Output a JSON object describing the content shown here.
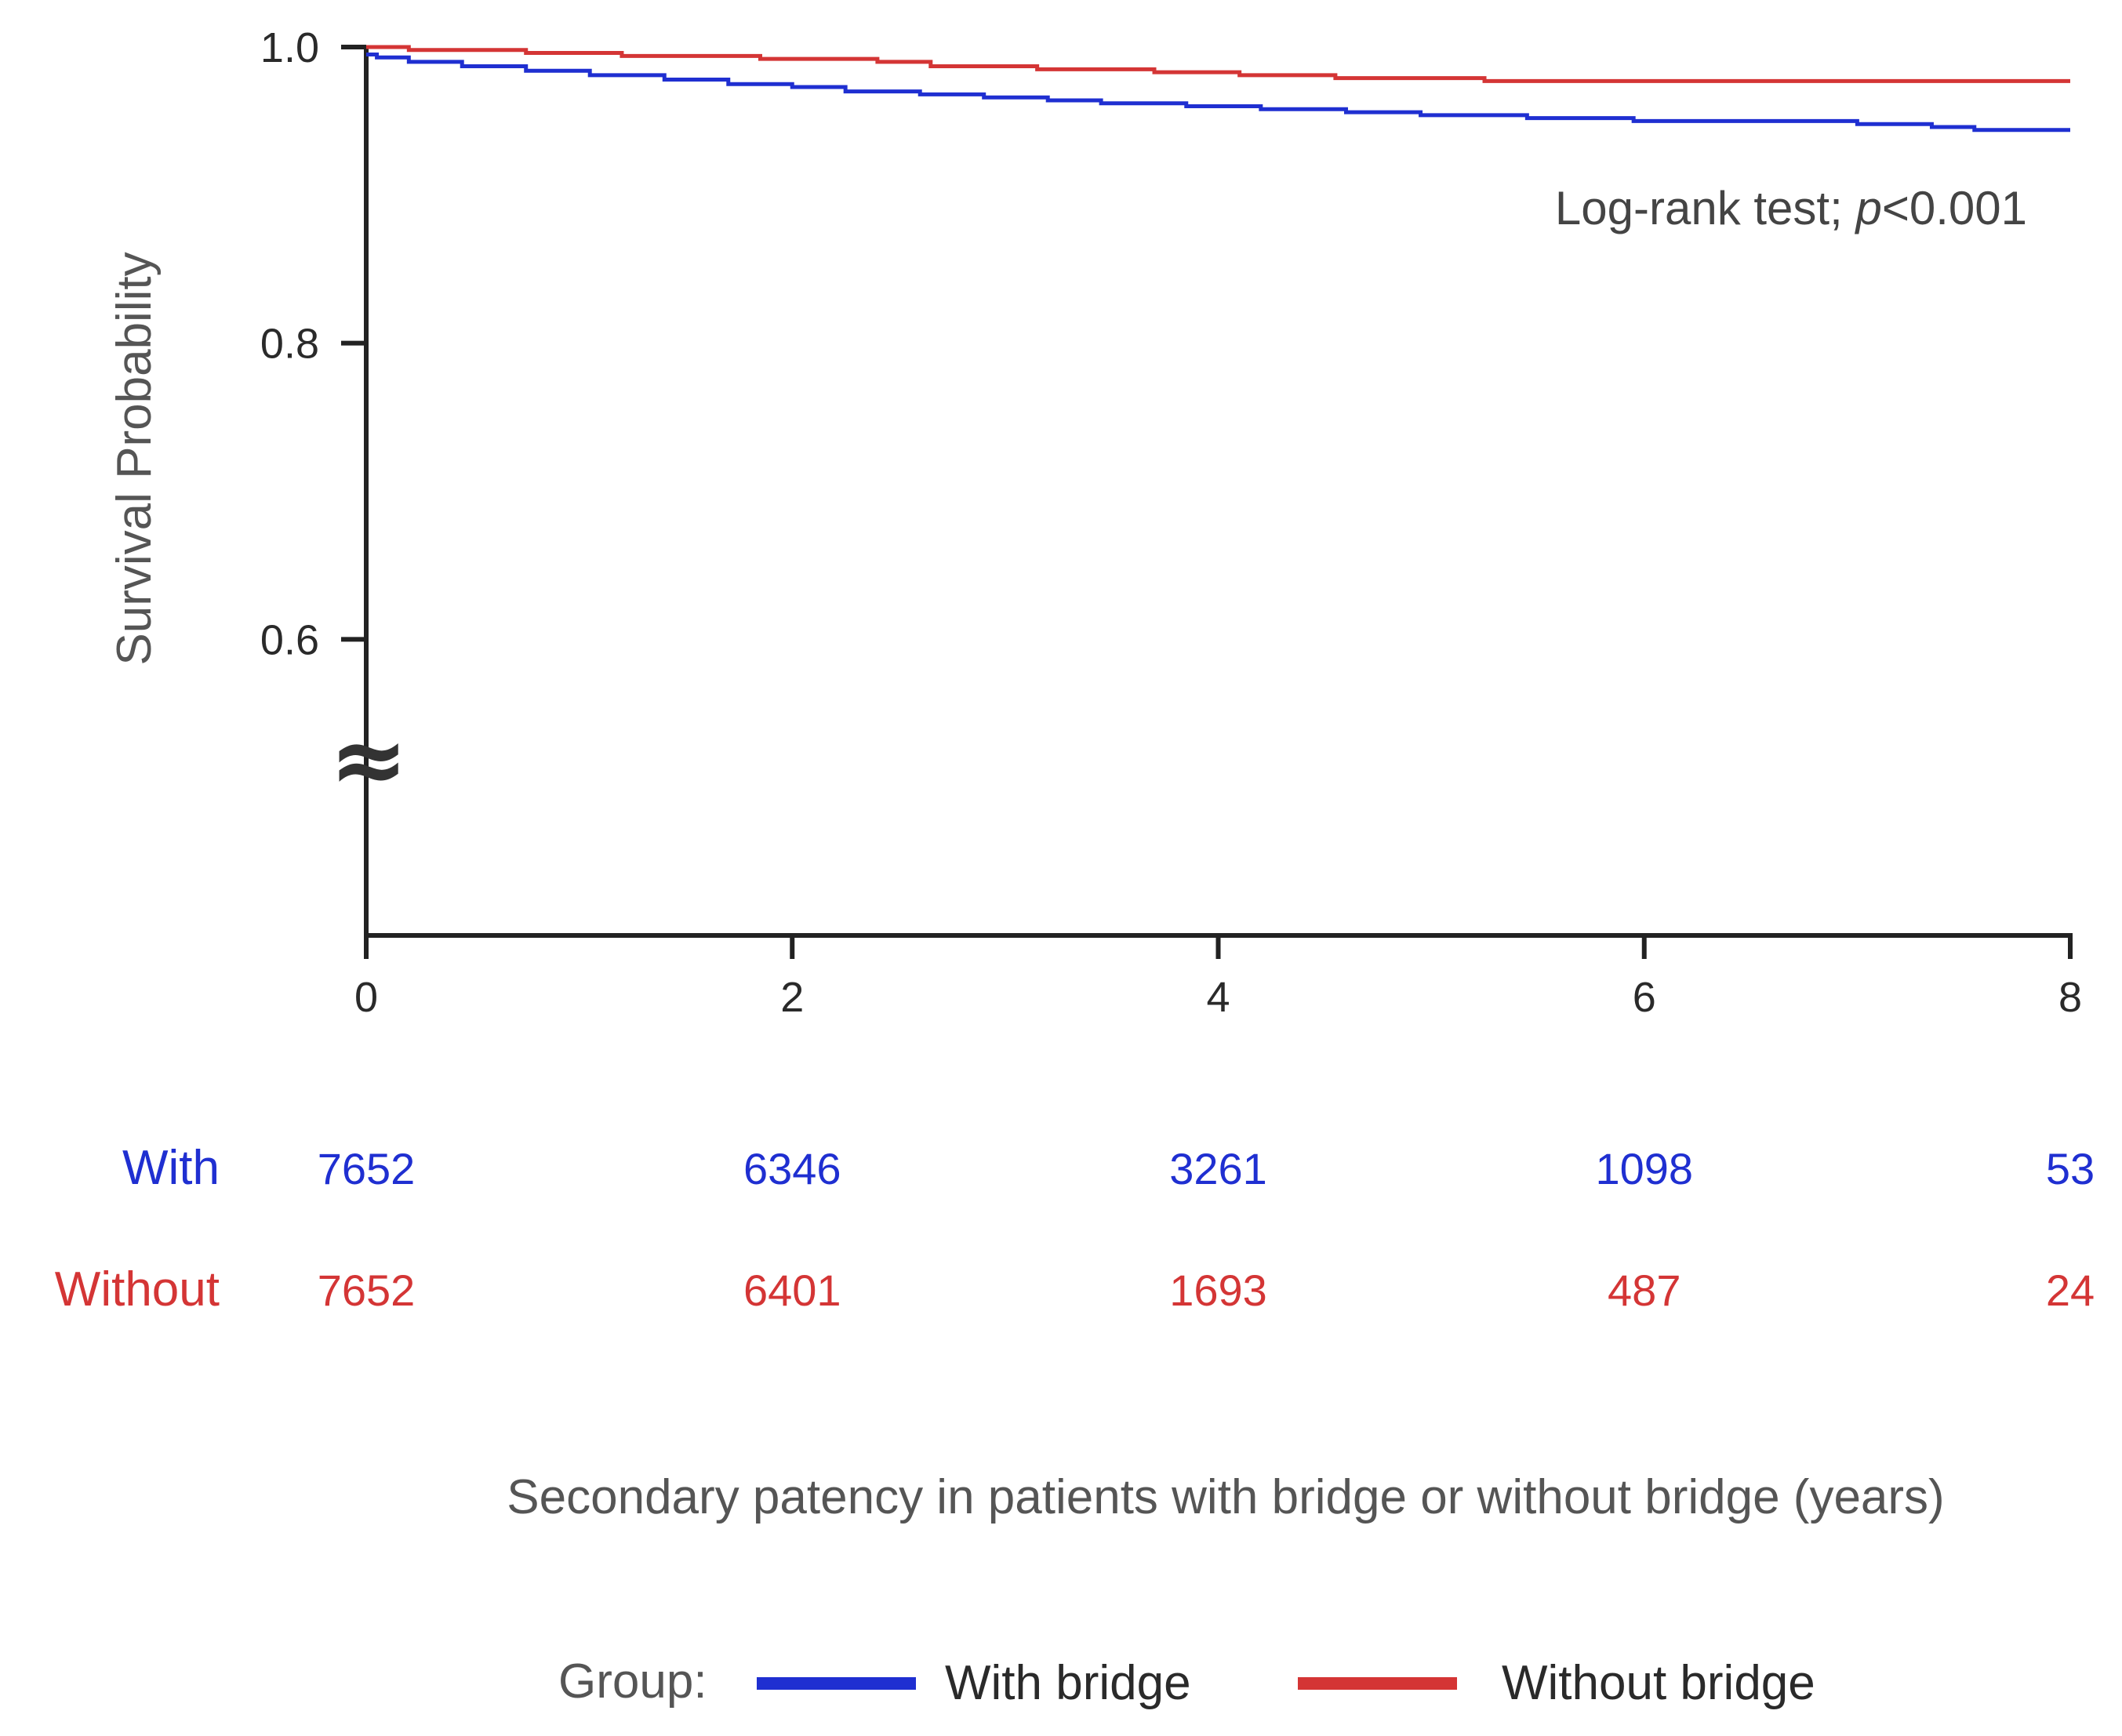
{
  "chart_data": {
    "type": "line",
    "title": "",
    "xlabel": "Secondary patency in patients with bridge or without bridge (years)",
    "ylabel": "Survival Probability",
    "xlim": [
      0,
      8
    ],
    "ylim": [
      0.4,
      1.0
    ],
    "x_ticks": [
      "0",
      "2",
      "4",
      "6",
      "8"
    ],
    "x_tick_values": [
      0,
      2,
      4,
      6,
      8
    ],
    "y_ticks": [
      "0.6",
      "0.8",
      "1.0"
    ],
    "y_tick_values": [
      0.6,
      0.8,
      1.0
    ],
    "axis_break_symbol": "≈",
    "annotation": {
      "prefix": "Log-rank test; ",
      "italic": "p",
      "suffix": "<0.001"
    },
    "series": [
      {
        "name": "With bridge",
        "color": "#1f2fd1",
        "x": [
          0,
          0.05,
          0.2,
          0.45,
          0.75,
          1.05,
          1.4,
          1.7,
          2.0,
          2.25,
          2.6,
          2.9,
          3.2,
          3.45,
          3.85,
          4.2,
          4.6,
          4.95,
          5.45,
          5.95,
          6.5,
          7.0,
          7.35,
          7.55,
          8.0
        ],
        "values": [
          0.995,
          0.993,
          0.99,
          0.987,
          0.984,
          0.981,
          0.978,
          0.975,
          0.973,
          0.97,
          0.968,
          0.966,
          0.964,
          0.962,
          0.96,
          0.958,
          0.956,
          0.954,
          0.952,
          0.95,
          0.95,
          0.948,
          0.946,
          0.944,
          0.944
        ]
      },
      {
        "name": "Without bridge",
        "color": "#d43535",
        "x": [
          0,
          0.2,
          0.75,
          1.2,
          1.85,
          2.4,
          2.65,
          3.15,
          3.7,
          4.1,
          4.55,
          5.25,
          6.0,
          7.0,
          8.0
        ],
        "values": [
          1.0,
          0.998,
          0.996,
          0.994,
          0.992,
          0.99,
          0.987,
          0.985,
          0.983,
          0.981,
          0.979,
          0.977,
          0.977,
          0.977,
          0.977
        ]
      }
    ],
    "at_risk": {
      "with": {
        "label": "With",
        "color": "#1f2fd1",
        "counts": [
          "7652",
          "6346",
          "3261",
          "1098",
          "53"
        ]
      },
      "without": {
        "label": "Without",
        "color": "#d43535",
        "counts": [
          "7652",
          "6401",
          "1693",
          "487",
          "24"
        ]
      }
    },
    "legend": {
      "title": "Group:",
      "position": "bottom",
      "items": [
        "With bridge",
        "Without bridge"
      ]
    }
  }
}
